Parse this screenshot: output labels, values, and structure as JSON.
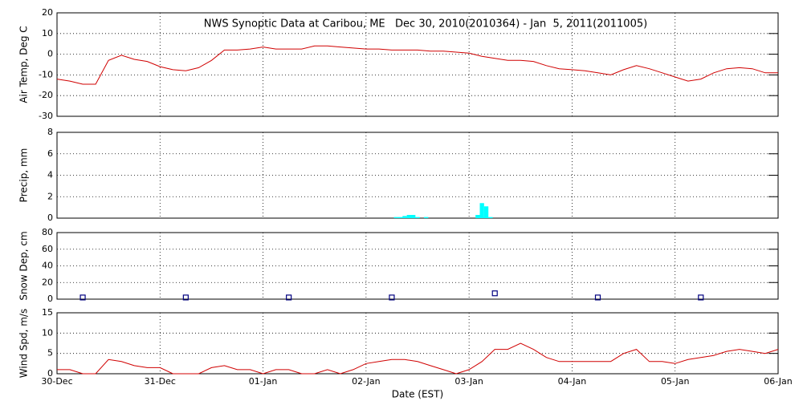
{
  "chart_data": [
    {
      "type": "line",
      "title": "NWS Synoptic Data at Caribou, ME   Dec 30, 2010(2010364) - Jan  5, 2011(2011005)",
      "ylabel": "Air Temp, Deg C",
      "color": "#d00000",
      "x": [
        0,
        3,
        6,
        9,
        12,
        15,
        18,
        21,
        24,
        27,
        30,
        33,
        36,
        39,
        42,
        45,
        48,
        51,
        54,
        57,
        60,
        63,
        66,
        69,
        72,
        75,
        78,
        81,
        84,
        87,
        90,
        93,
        96,
        99,
        102,
        105,
        108,
        111,
        114,
        117,
        120,
        123,
        126,
        129,
        132,
        135,
        138,
        141,
        144,
        147,
        150,
        153,
        156,
        159,
        162,
        165,
        168
      ],
      "values": [
        -12,
        -13,
        -14.5,
        -14.5,
        -3,
        -0.5,
        -2.5,
        -3.5,
        -6,
        -7.5,
        -8,
        -6.5,
        -3,
        2,
        2,
        2.5,
        3.5,
        2.5,
        2.5,
        2.5,
        4,
        4,
        3.5,
        3,
        2.5,
        2.5,
        2,
        2,
        2,
        1.5,
        1.5,
        1,
        0.5,
        -1,
        -2,
        -3,
        -3,
        -3.5,
        -5.5,
        -7,
        -7.5,
        -8,
        -9,
        -10,
        -7.5,
        -5.5,
        -7,
        -9,
        -11,
        -13,
        -12,
        -9,
        -7,
        -6.5,
        -7,
        -9,
        -9
      ],
      "xlim": [
        0,
        168
      ],
      "xticks": [
        0,
        24,
        48,
        72,
        96,
        120,
        144,
        168
      ],
      "ylim": [
        -30,
        20
      ],
      "yticks": [
        -30,
        -20,
        -10,
        0,
        10,
        20
      ],
      "grid": true
    },
    {
      "type": "bar",
      "ylabel": "Precip, mm",
      "color": "#00ffff",
      "x": [
        79,
        80,
        81,
        82,
        83,
        84,
        86,
        98,
        99,
        100,
        101
      ],
      "values": [
        0.1,
        0.1,
        0.2,
        0.3,
        0.3,
        0.1,
        0.1,
        0.3,
        1.4,
        1.1,
        0.1
      ],
      "xlim": [
        0,
        168
      ],
      "xticks": [
        0,
        24,
        48,
        72,
        96,
        120,
        144,
        168
      ],
      "ylim": [
        0,
        8
      ],
      "yticks": [
        0,
        2,
        4,
        6,
        8
      ],
      "grid": true
    },
    {
      "type": "scatter",
      "ylabel": "Snow Dep, cm",
      "color": "#000080",
      "x": [
        6,
        30,
        54,
        78,
        102,
        126,
        150
      ],
      "values": [
        2,
        2,
        2,
        2,
        7,
        2,
        2
      ],
      "xlim": [
        0,
        168
      ],
      "xticks": [
        0,
        24,
        48,
        72,
        96,
        120,
        144,
        168
      ],
      "ylim": [
        0,
        80
      ],
      "yticks": [
        0,
        20,
        40,
        60,
        80
      ],
      "grid": true
    },
    {
      "type": "line",
      "ylabel": "Wind Spd, m/s",
      "xlabel": "Date (EST)",
      "color": "#d00000",
      "x": [
        0,
        3,
        6,
        9,
        12,
        15,
        18,
        21,
        24,
        27,
        30,
        33,
        36,
        39,
        42,
        45,
        48,
        51,
        54,
        57,
        60,
        63,
        66,
        69,
        72,
        75,
        78,
        81,
        84,
        87,
        90,
        93,
        96,
        99,
        102,
        105,
        108,
        111,
        114,
        117,
        120,
        123,
        126,
        129,
        132,
        135,
        138,
        141,
        144,
        147,
        150,
        153,
        156,
        159,
        162,
        165,
        168
      ],
      "values": [
        1,
        1,
        0,
        0,
        3.5,
        3,
        2,
        1.5,
        1.5,
        0,
        0,
        0,
        1.5,
        2,
        1,
        1,
        0,
        1,
        1,
        0,
        0,
        1,
        0,
        1,
        2.5,
        3,
        3.5,
        3.5,
        3,
        2,
        1,
        0,
        1,
        3,
        6,
        6,
        7.5,
        6,
        4,
        3,
        3,
        3,
        3,
        3,
        5,
        6,
        3,
        3,
        2.5,
        3.5,
        4,
        4.5,
        5.5,
        6,
        5.5,
        5,
        6
      ],
      "xlim": [
        0,
        168
      ],
      "xticks": [
        {
          "value": 0,
          "label": "30-Dec"
        },
        {
          "value": 24,
          "label": "31-Dec"
        },
        {
          "value": 48,
          "label": "01-Jan"
        },
        {
          "value": 72,
          "label": "02-Jan"
        },
        {
          "value": 96,
          "label": "03-Jan"
        },
        {
          "value": 120,
          "label": "04-Jan"
        },
        {
          "value": 144,
          "label": "05-Jan"
        },
        {
          "value": 168,
          "label": "06-Jan"
        }
      ],
      "ylim": [
        0,
        15
      ],
      "yticks": [
        0,
        5,
        10,
        15
      ],
      "grid": true
    }
  ]
}
